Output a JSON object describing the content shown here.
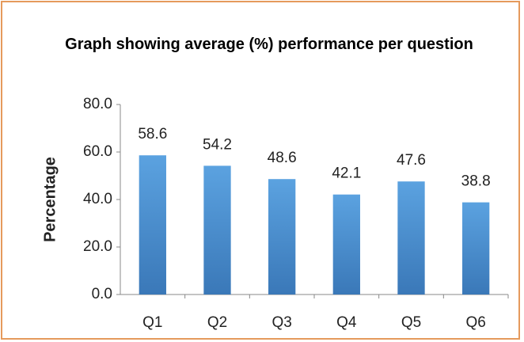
{
  "chart_data": {
    "type": "bar",
    "title": "Graph showing average (%) performance per question",
    "y_label": "Percentage",
    "categories": [
      "Q1",
      "Q2",
      "Q3",
      "Q4",
      "Q5",
      "Q6"
    ],
    "values": [
      58.6,
      54.2,
      48.6,
      42.1,
      47.6,
      38.8
    ],
    "color": "#4a8fd0",
    "ylim": [
      0,
      80
    ],
    "yticks": [
      {
        "value": 0,
        "label": "0.0"
      },
      {
        "value": 20,
        "label": "20.0"
      },
      {
        "value": 40,
        "label": "40.0"
      },
      {
        "value": 60,
        "label": "60.0"
      },
      {
        "value": 80,
        "label": "80.0"
      }
    ],
    "grid": false
  }
}
